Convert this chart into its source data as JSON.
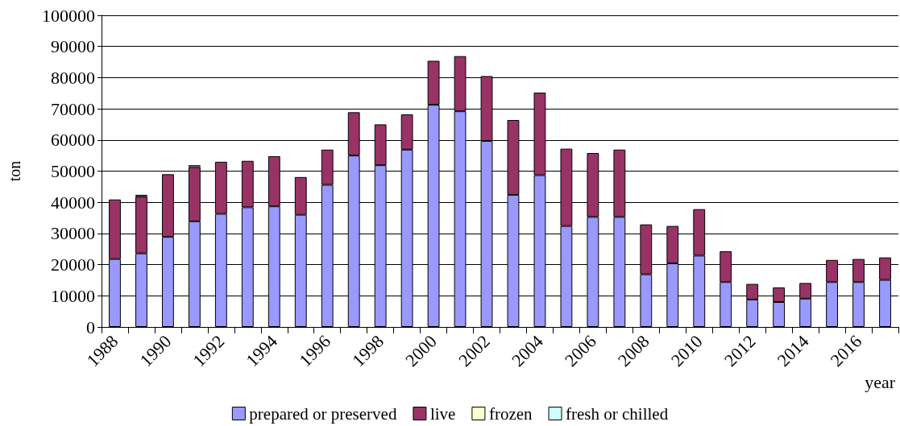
{
  "chart_data": {
    "type": "bar",
    "stacked": true,
    "xlabel": "year",
    "ylabel": "ton",
    "categories": [
      "1988",
      null,
      "1990",
      null,
      "1992",
      null,
      "1994",
      null,
      "1996",
      null,
      "1998",
      null,
      "2000",
      null,
      "2002",
      null,
      "2004",
      null,
      "2006",
      null,
      "2008",
      null,
      "2010",
      null,
      "2012",
      null,
      "2014",
      null,
      "2016",
      null
    ],
    "series": [
      {
        "name": "prepared or preserved",
        "color": "#9999ff",
        "values": [
          21800,
          23600,
          28900,
          33900,
          36300,
          38400,
          38700,
          36000,
          45600,
          55000,
          51900,
          56900,
          71300,
          69200,
          59700,
          42400,
          48700,
          32400,
          35300,
          35300,
          16900,
          20400,
          22900,
          14400,
          8800,
          8000,
          9100,
          14400,
          14400,
          15100
        ]
      },
      {
        "name": "live",
        "color": "#993366",
        "values": [
          19100,
          18200,
          20100,
          17400,
          16700,
          14900,
          16100,
          12100,
          11300,
          13900,
          13100,
          11300,
          14100,
          17700,
          20800,
          24000,
          26500,
          24800,
          20500,
          21600,
          16000,
          12000,
          14900,
          9900,
          5000,
          4700,
          5000,
          7100,
          7400,
          7200
        ]
      },
      {
        "name": "frozen",
        "color": "#ffffcc",
        "values": [
          0,
          600,
          0,
          600,
          0,
          0,
          0,
          0,
          0,
          0,
          0,
          0,
          0,
          0,
          0,
          0,
          0,
          0,
          0,
          0,
          0,
          0,
          0,
          0,
          0,
          0,
          0,
          0,
          0,
          0
        ]
      },
      {
        "name": "fresh or chilled",
        "color": "#ccffff",
        "values": [
          0,
          0,
          0,
          0,
          0,
          0,
          0,
          0,
          0,
          0,
          0,
          0,
          0,
          0,
          0,
          0,
          0,
          0,
          0,
          0,
          0,
          0,
          0,
          0,
          0,
          0,
          0,
          0,
          0,
          0
        ]
      }
    ],
    "ylim": [
      0,
      100000
    ],
    "yticks": [
      0,
      10000,
      20000,
      30000,
      40000,
      50000,
      60000,
      70000,
      80000,
      90000,
      100000
    ],
    "grid": "y",
    "legend": "bottom"
  }
}
